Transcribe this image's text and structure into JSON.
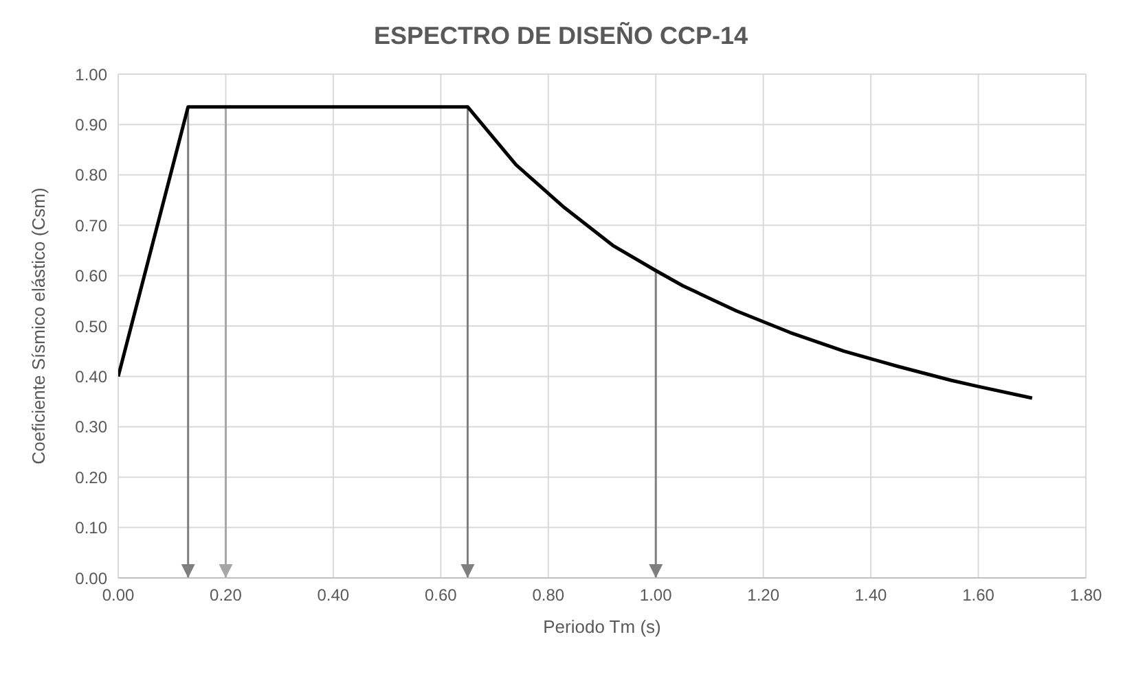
{
  "chart_data": {
    "type": "line",
    "title": "ESPECTRO DE DISEÑO CCP-14",
    "xlabel": "Periodo Tm (s)",
    "ylabel": "Coeficiente Sísmico elástico (Csm)",
    "x": [
      0,
      0.13,
      0.65,
      0.74,
      0.83,
      0.92,
      1.0,
      1.05,
      1.15,
      1.25,
      1.35,
      1.45,
      1.55,
      1.6,
      1.7
    ],
    "series": [
      {
        "color": "#000000",
        "values": [
          0.4,
          0.935,
          0.935,
          0.82,
          0.735,
          0.66,
          0.61,
          0.58,
          0.53,
          0.487,
          0.45,
          0.42,
          0.392,
          0.38,
          0.357
        ]
      }
    ],
    "xlim": [
      0,
      1.8
    ],
    "xticks": [
      {
        "value": 0,
        "label": "0.00"
      },
      {
        "value": 0.2,
        "label": "0.20"
      },
      {
        "value": 0.4,
        "label": "0.40"
      },
      {
        "value": 0.6,
        "label": "0.60"
      },
      {
        "value": 0.8,
        "label": "0.80"
      },
      {
        "value": 1,
        "label": "1.00"
      },
      {
        "value": 1.2,
        "label": "1.20"
      },
      {
        "value": 1.4,
        "label": "1.40"
      },
      {
        "value": 1.6,
        "label": "1.60"
      },
      {
        "value": 1.8,
        "label": "1.80"
      }
    ],
    "ylim": [
      0,
      1
    ],
    "yticks": [
      {
        "value": 0,
        "label": "0.00"
      },
      {
        "value": 0.1,
        "label": "0.10"
      },
      {
        "value": 0.2,
        "label": "0.20"
      },
      {
        "value": 0.3,
        "label": "0.30"
      },
      {
        "value": 0.4,
        "label": "0.40"
      },
      {
        "value": 0.5,
        "label": "0.50"
      },
      {
        "value": 0.6,
        "label": "0.60"
      },
      {
        "value": 0.7,
        "label": "0.70"
      },
      {
        "value": 0.8,
        "label": "0.80"
      },
      {
        "value": 0.9,
        "label": "0.90"
      },
      {
        "value": 1,
        "label": "1.00"
      }
    ],
    "grid": true,
    "marker": "none",
    "line_style": "solid",
    "ref_lines": [
      {
        "axis": "x",
        "value": 0.13,
        "color": "#7f7f7f"
      },
      {
        "axis": "x",
        "value": 0.2,
        "color": "#a6a6a6"
      },
      {
        "axis": "x",
        "value": 0.65,
        "color": "#7f7f7f"
      },
      {
        "axis": "x",
        "value": 1.0,
        "color": "#7f7f7f"
      }
    ]
  }
}
